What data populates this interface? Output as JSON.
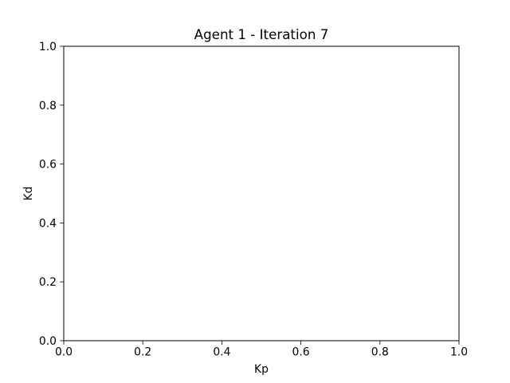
{
  "chart_data": {
    "type": "scatter",
    "title": "Agent 1 - Iteration 7",
    "xlabel": "Kp",
    "ylabel": "Kd",
    "xlim": [
      0.0,
      1.0
    ],
    "ylim": [
      0.0,
      1.0
    ],
    "xticks": [
      0.0,
      0.2,
      0.4,
      0.6,
      0.8,
      1.0
    ],
    "yticks": [
      0.0,
      0.2,
      0.4,
      0.6,
      0.8,
      1.0
    ],
    "xtick_labels": [
      "0.0",
      "0.2",
      "0.4",
      "0.6",
      "0.8",
      "1.0"
    ],
    "ytick_labels": [
      "0.0",
      "0.2",
      "0.4",
      "0.6",
      "0.8",
      "1.0"
    ],
    "grid": false,
    "series": []
  }
}
